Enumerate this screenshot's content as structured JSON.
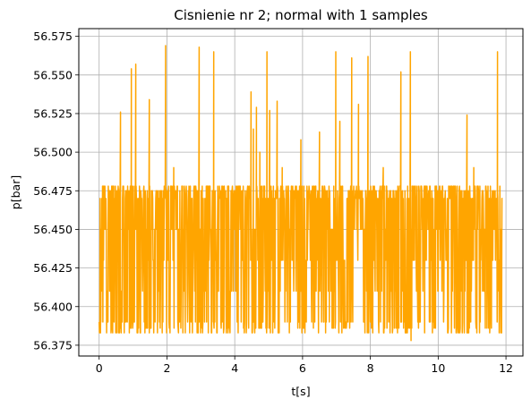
{
  "chart_data": {
    "type": "line",
    "title": "Cisnienie nr 2; normal with 1 samples",
    "xlabel": "t[s]",
    "ylabel": "p[bar]",
    "xlim": [
      -0.6,
      12.5
    ],
    "ylim": [
      56.368,
      56.58
    ],
    "xticks": [
      0,
      2,
      4,
      6,
      8,
      10,
      12
    ],
    "yticks": [
      56.375,
      56.4,
      56.425,
      56.45,
      56.475,
      56.5,
      56.525,
      56.55,
      56.575
    ],
    "ytick_labels": [
      "56.375",
      "56.400",
      "56.425",
      "56.450",
      "56.475",
      "56.500",
      "56.525",
      "56.550",
      "56.575"
    ],
    "grid": true,
    "series": [
      {
        "color": "#FFA500",
        "x_start": 0.0,
        "x_end": 11.9,
        "dt": 0.01,
        "baseline_levels": [
          56.475,
          56.478,
          56.47,
          56.45,
          56.43,
          56.41,
          56.39,
          56.386,
          56.383
        ],
        "min": 56.378,
        "max": 56.569,
        "spikes": [
          {
            "x": 0.05,
            "y": 56.425
          },
          {
            "x": 0.63,
            "y": 56.526
          },
          {
            "x": 0.95,
            "y": 56.554
          },
          {
            "x": 1.08,
            "y": 56.557
          },
          {
            "x": 1.48,
            "y": 56.534
          },
          {
            "x": 1.96,
            "y": 56.569
          },
          {
            "x": 2.2,
            "y": 56.49
          },
          {
            "x": 2.95,
            "y": 56.568
          },
          {
            "x": 3.38,
            "y": 56.565
          },
          {
            "x": 4.48,
            "y": 56.539
          },
          {
            "x": 4.55,
            "y": 56.515
          },
          {
            "x": 4.64,
            "y": 56.529
          },
          {
            "x": 4.74,
            "y": 56.5
          },
          {
            "x": 4.95,
            "y": 56.565
          },
          {
            "x": 5.03,
            "y": 56.527
          },
          {
            "x": 5.25,
            "y": 56.533
          },
          {
            "x": 5.4,
            "y": 56.49
          },
          {
            "x": 5.95,
            "y": 56.508
          },
          {
            "x": 6.5,
            "y": 56.513
          },
          {
            "x": 6.98,
            "y": 56.565
          },
          {
            "x": 7.1,
            "y": 56.52
          },
          {
            "x": 7.45,
            "y": 56.561
          },
          {
            "x": 7.65,
            "y": 56.531
          },
          {
            "x": 7.93,
            "y": 56.562
          },
          {
            "x": 8.38,
            "y": 56.49
          },
          {
            "x": 8.9,
            "y": 56.552
          },
          {
            "x": 9.18,
            "y": 56.565
          },
          {
            "x": 10.85,
            "y": 56.524
          },
          {
            "x": 11.05,
            "y": 56.49
          },
          {
            "x": 11.75,
            "y": 56.565
          },
          {
            "x": 9.2,
            "y": 56.378
          }
        ]
      }
    ]
  }
}
